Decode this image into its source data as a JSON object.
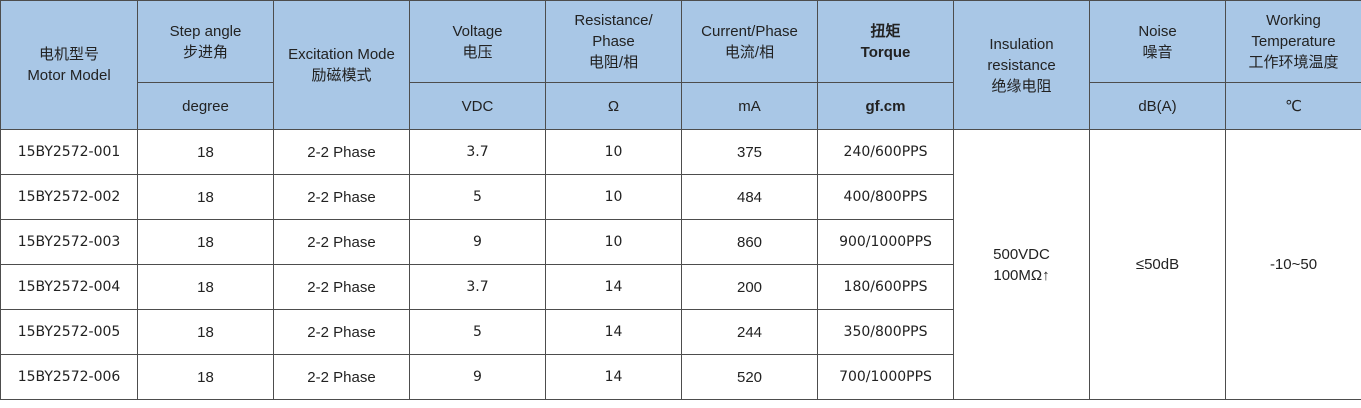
{
  "headers": {
    "model": {
      "cn": "电机型号",
      "en": "Motor Model"
    },
    "step_angle": {
      "en": "Step angle",
      "cn": "步进角",
      "unit": "degree"
    },
    "excitation": {
      "en": "Excitation Mode",
      "cn": "励磁模式"
    },
    "voltage": {
      "en": "Voltage",
      "cn": "电压",
      "unit": "VDC"
    },
    "resistance": {
      "en1": "Resistance/",
      "en2": "Phase",
      "cn": "电阻/相",
      "unit": "Ω"
    },
    "current": {
      "en": "Current/Phase",
      "cn": "电流/相",
      "unit": "mA"
    },
    "torque": {
      "cn": "扭矩",
      "en": "Torque",
      "unit": "gf.cm"
    },
    "insulation": {
      "en1": "Insulation",
      "en2": "resistance",
      "cn": "绝缘电阻"
    },
    "noise": {
      "en": "Noise",
      "cn": "噪音",
      "unit": "dB(A)"
    },
    "temperature": {
      "en1": "Working",
      "en2": "Temperature",
      "cn": "工作环境温度",
      "unit": "℃"
    }
  },
  "shared": {
    "insulation_line1": "500VDC",
    "insulation_line2": "100MΩ↑",
    "noise": "≤50dB",
    "temperature": "-10~50"
  },
  "rows": [
    {
      "model": "15BY2572-001",
      "step": "18",
      "excitation": "2-2 Phase",
      "voltage": "3.7",
      "resistance": "10",
      "current": "375",
      "torque": "240/600PPS"
    },
    {
      "model": "15BY2572-002",
      "step": "18",
      "excitation": "2-2 Phase",
      "voltage": "5",
      "resistance": "10",
      "current": "484",
      "torque": "400/800PPS"
    },
    {
      "model": "15BY2572-003",
      "step": "18",
      "excitation": "2-2 Phase",
      "voltage": "9",
      "resistance": "10",
      "current": "860",
      "torque": "900/1000PPS"
    },
    {
      "model": "15BY2572-004",
      "step": "18",
      "excitation": "2-2 Phase",
      "voltage": "3.7",
      "resistance": "14",
      "current": "200",
      "torque": "180/600PPS"
    },
    {
      "model": "15BY2572-005",
      "step": "18",
      "excitation": "2-2 Phase",
      "voltage": "5",
      "resistance": "14",
      "current": "244",
      "torque": "350/800PPS"
    },
    {
      "model": "15BY2572-006",
      "step": "18",
      "excitation": "2-2 Phase",
      "voltage": "9",
      "resistance": "14",
      "current": "520",
      "torque": "700/1000PPS"
    }
  ]
}
